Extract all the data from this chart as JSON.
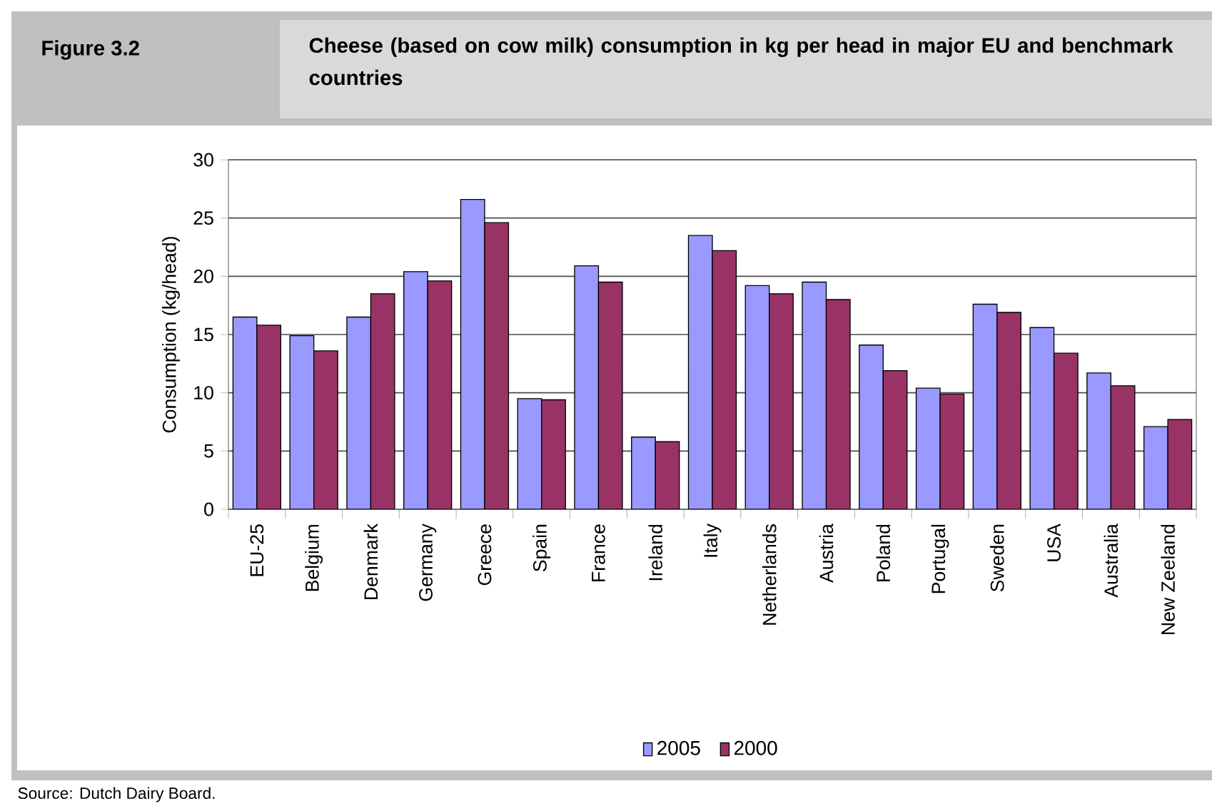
{
  "chart_data": {
    "type": "bar",
    "title": "Cheese (based on cow milk) consumption in kg per head in major EU and benchmark countries",
    "annotations": [
      "Figure 3.2",
      "Source: Dutch Dairy Board."
    ],
    "ylabel": "Consumption (kg/head)",
    "categories": [
      "EU-25",
      "Belgium",
      "Denmark",
      "Germany",
      "Greece",
      "Spain",
      "France",
      "Ireland",
      "Italy",
      "Netherlands",
      "Austria",
      "Poland",
      "Portugal",
      "Sweden",
      "USA",
      "Australia",
      "New Zeeland"
    ],
    "series": [
      {
        "name": "2005",
        "color": "#9999ff",
        "values": [
          16.5,
          14.9,
          16.5,
          20.4,
          26.6,
          9.5,
          20.9,
          6.2,
          23.5,
          19.2,
          19.5,
          14.1,
          10.4,
          17.6,
          15.6,
          11.7,
          7.1
        ]
      },
      {
        "name": "2000",
        "color": "#993366",
        "values": [
          15.8,
          13.6,
          18.5,
          19.6,
          24.6,
          9.4,
          19.5,
          5.8,
          22.2,
          18.5,
          18.0,
          11.9,
          9.9,
          16.9,
          13.4,
          10.6,
          7.7
        ]
      }
    ],
    "ylim": [
      0,
      30
    ],
    "yticks": [
      0,
      5,
      10,
      15,
      20,
      25,
      30
    ],
    "grid": "y",
    "legend": "bottom"
  }
}
